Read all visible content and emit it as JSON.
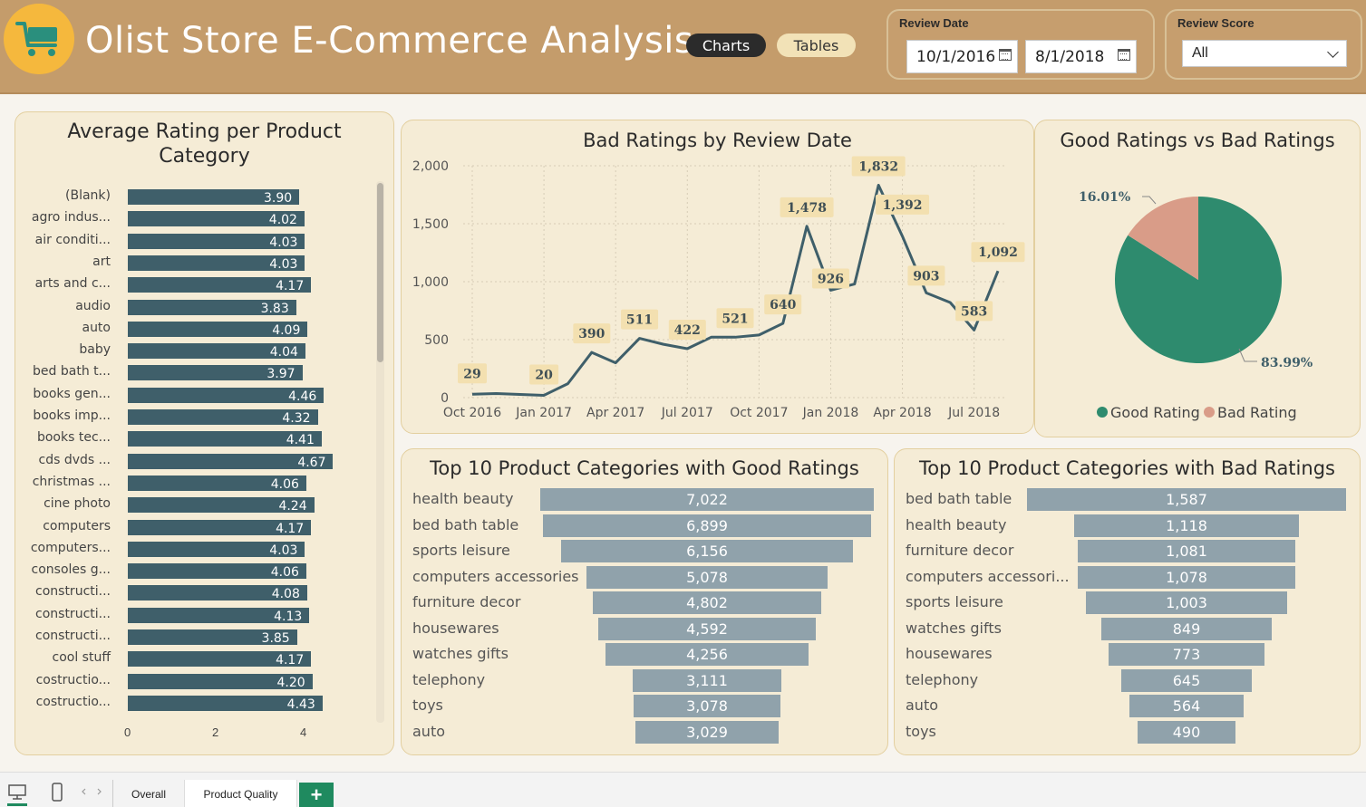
{
  "header": {
    "title": "Olist Store E-Commerce Analysis",
    "nav_charts": "Charts",
    "nav_tables": "Tables",
    "review_date_label": "Review Date",
    "date_start": "10/1/2016",
    "date_end": "8/1/2018",
    "review_score_label": "Review Score",
    "review_score_value": "All"
  },
  "colors": {
    "header_bg": "#c49c6b",
    "panel_bg": "#f5ecd6",
    "avg_bar": "#3f5f6a",
    "line": "#3f5f6a",
    "funnel_bar": "#90a2ab",
    "good_rating": "#2e8b6e",
    "bad_rating": "#d99c88",
    "data_label_bg": "#f3e0b0"
  },
  "footer": {
    "tabs": [
      "Overall",
      "Product Quality"
    ],
    "active_tab": "Product Quality",
    "add_label": "+"
  },
  "chart_data": [
    {
      "type": "bar",
      "orientation": "horizontal",
      "title": "Average Rating per Product Category",
      "categories": [
        "(Blank)",
        "agro indus...",
        "air conditi...",
        "art",
        "arts and c...",
        "audio",
        "auto",
        "baby",
        "bed bath t...",
        "books gen...",
        "books imp...",
        "books tec...",
        "cds dvds ...",
        "christmas ...",
        "cine photo",
        "computers",
        "computers...",
        "consoles g...",
        "constructi...",
        "constructi...",
        "constructi...",
        "cool stuff",
        "costructio...",
        "costructio..."
      ],
      "values": [
        3.9,
        4.02,
        4.03,
        4.03,
        4.17,
        3.83,
        4.09,
        4.04,
        3.97,
        4.46,
        4.32,
        4.41,
        4.67,
        4.06,
        4.24,
        4.17,
        4.03,
        4.06,
        4.08,
        4.13,
        3.85,
        4.17,
        4.2,
        4.43
      ],
      "labels": [
        "3.90",
        "4.02",
        "4.03",
        "4.03",
        "4.17",
        "3.83",
        "4.09",
        "4.04",
        "3.97",
        "4.46",
        "4.32",
        "4.41",
        "4.67",
        "4.06",
        "4.24",
        "4.17",
        "4.03",
        "4.06",
        "4.08",
        "4.13",
        "3.85",
        "4.17",
        "4.20",
        "4.43"
      ],
      "xticks": [
        "0",
        "2",
        "4"
      ],
      "xlim": [
        0,
        4.9
      ]
    },
    {
      "type": "line",
      "title": "Bad Ratings by Review Date",
      "x": [
        "2016-10",
        "2016-11",
        "2016-12",
        "2017-01",
        "2017-02",
        "2017-03",
        "2017-04",
        "2017-05",
        "2017-06",
        "2017-07",
        "2017-08",
        "2017-09",
        "2017-10",
        "2017-11",
        "2017-12",
        "2018-01",
        "2018-02",
        "2018-03",
        "2018-04",
        "2018-05",
        "2018-06",
        "2018-07",
        "2018-08"
      ],
      "values": [
        29,
        35,
        27,
        20,
        120,
        390,
        300,
        511,
        460,
        422,
        521,
        521,
        540,
        640,
        1478,
        926,
        980,
        1832,
        1392,
        903,
        820,
        583,
        1092
      ],
      "data_labels": [
        {
          "index": 0,
          "text": "29"
        },
        {
          "index": 3,
          "text": "20"
        },
        {
          "index": 5,
          "text": "390"
        },
        {
          "index": 7,
          "text": "511"
        },
        {
          "index": 9,
          "text": "422"
        },
        {
          "index": 11,
          "text": "521"
        },
        {
          "index": 13,
          "text": "640"
        },
        {
          "index": 14,
          "text": "1,478"
        },
        {
          "index": 15,
          "text": "926"
        },
        {
          "index": 17,
          "text": "1,832"
        },
        {
          "index": 18,
          "text": "1,392"
        },
        {
          "index": 19,
          "text": "903"
        },
        {
          "index": 21,
          "text": "583"
        },
        {
          "index": 22,
          "text": "1,092"
        }
      ],
      "xticks": [
        "Oct 2016",
        "Jan 2017",
        "Apr 2017",
        "Jul 2017",
        "Oct 2017",
        "Jan 2018",
        "Apr 2018",
        "Jul 2018"
      ],
      "yticks": [
        "0",
        "500",
        "1,000",
        "1,500",
        "2,000"
      ],
      "ylim": [
        0,
        2000
      ],
      "grid": true
    },
    {
      "type": "pie",
      "title": "Good Ratings vs Bad Ratings",
      "labels": [
        "Good Rating",
        "Bad Rating"
      ],
      "values": [
        83.99,
        16.01
      ],
      "value_labels": [
        "83.99%",
        "16.01%"
      ],
      "legend": "bottom"
    },
    {
      "type": "bar",
      "style": "funnel",
      "title": "Top 10 Product Categories with Good Ratings",
      "categories": [
        "health beauty",
        "bed bath table",
        "sports leisure",
        "computers accessories",
        "furniture decor",
        "housewares",
        "watches gifts",
        "telephony",
        "toys",
        "auto"
      ],
      "values": [
        7022,
        6899,
        6156,
        5078,
        4802,
        4592,
        4256,
        3111,
        3078,
        3029
      ],
      "labels": [
        "7,022",
        "6,899",
        "6,156",
        "5,078",
        "4,802",
        "4,592",
        "4,256",
        "3,111",
        "3,078",
        "3,029"
      ]
    },
    {
      "type": "bar",
      "style": "funnel",
      "title": "Top 10 Product Categories with Bad Ratings",
      "categories": [
        "bed bath table",
        "health beauty",
        "furniture decor",
        "computers accessori...",
        "sports leisure",
        "watches gifts",
        "housewares",
        "telephony",
        "auto",
        "toys"
      ],
      "values": [
        1587,
        1118,
        1081,
        1078,
        1003,
        849,
        773,
        645,
        564,
        490
      ],
      "labels": [
        "1,587",
        "1,118",
        "1,081",
        "1,078",
        "1,003",
        "849",
        "773",
        "645",
        "564",
        "490"
      ]
    }
  ]
}
